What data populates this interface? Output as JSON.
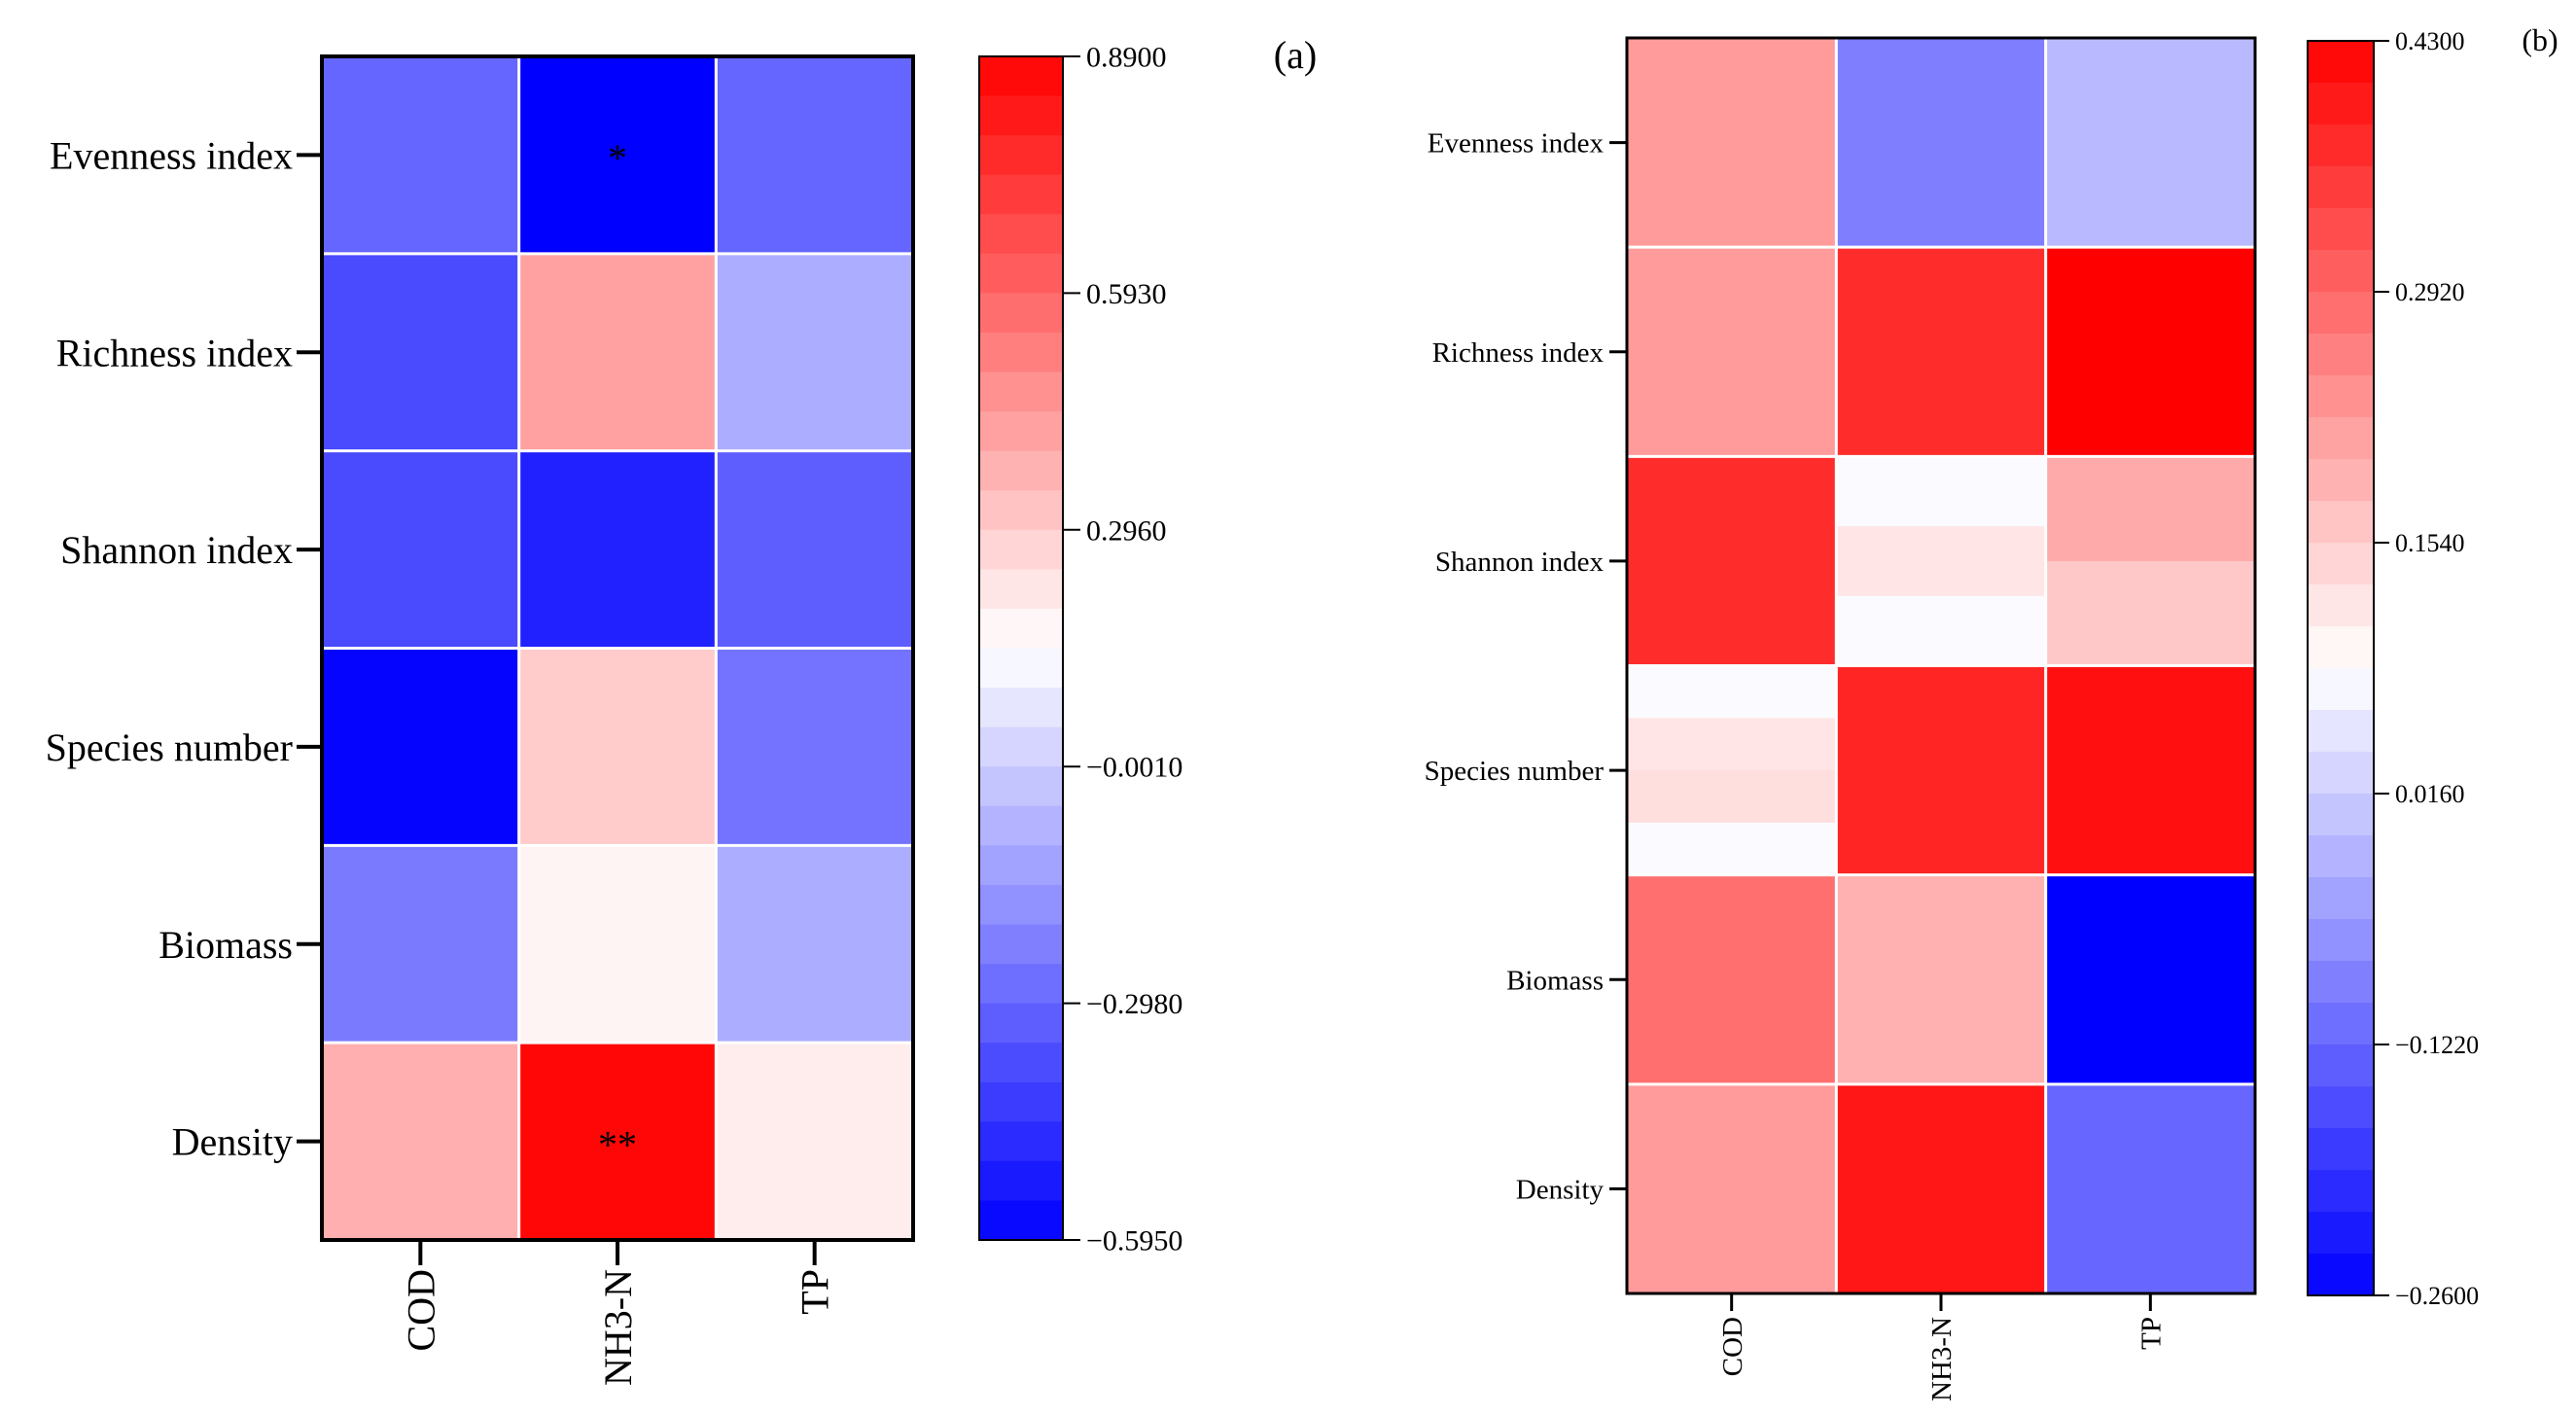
{
  "figure_panels": [
    "(a)",
    "(b)"
  ],
  "chart_data": [
    {
      "type": "heatmap",
      "panel_label": "(a)",
      "title": "",
      "xlabel": "",
      "ylabel": "",
      "rows": [
        "Evenness index",
        "Richness index",
        "Shannon index",
        "Species number",
        "Biomass",
        "Density"
      ],
      "cols": [
        "COD",
        "NH3-N",
        "TP"
      ],
      "values": [
        [
          -0.3,
          -0.595,
          -0.3
        ],
        [
          -0.38,
          0.42,
          -0.09
        ],
        [
          -0.38,
          -0.5,
          -0.32
        ],
        [
          -0.58,
          0.3,
          -0.26
        ],
        [
          -0.24,
          0.18,
          -0.09
        ],
        [
          0.38,
          0.87,
          0.2
        ]
      ],
      "annotations": [
        [
          "",
          "*",
          ""
        ],
        [
          "",
          "",
          ""
        ],
        [
          "",
          "",
          ""
        ],
        [
          "",
          "",
          ""
        ],
        [
          "",
          "",
          ""
        ],
        [
          "",
          "**",
          ""
        ]
      ],
      "colorbar": {
        "min": -0.595,
        "max": 0.89,
        "ticks": [
          0.89,
          0.593,
          0.296,
          -0.001,
          -0.298,
          -0.595
        ],
        "tick_labels": [
          "0.8900",
          "0.5930",
          "0.2960",
          "−0.0010",
          "−0.2980",
          "−0.5950"
        ],
        "colors": {
          "low": "#0000ff",
          "mid": "#ffffff",
          "high": "#ff0000"
        },
        "steps": 30
      }
    },
    {
      "type": "heatmap",
      "panel_label": "(b)",
      "title": "",
      "xlabel": "",
      "ylabel": "",
      "rows": [
        "Evenness index",
        "Richness index",
        "Shannon index",
        "Species number",
        "Biomass",
        "Density"
      ],
      "cols": [
        "COD",
        "NH3-N",
        "TP"
      ],
      "values": [
        [
          0.22,
          -0.09,
          -0.01
        ],
        [
          0.22,
          0.37,
          0.43
        ],
        [
          0.37,
          [
            0.08,
            0.12,
            0.08
          ],
          [
            0.2,
            0.2,
            0.16,
            0.16
          ]
        ],
        [
          [
            0.08,
            0.12,
            0.13,
            0.08
          ],
          0.38,
          0.41
        ],
        [
          0.28,
          0.19,
          -0.26
        ],
        [
          0.22,
          0.4,
          -0.12
        ]
      ],
      "annotations": [],
      "colorbar": {
        "min": -0.26,
        "max": 0.43,
        "ticks": [
          0.43,
          0.292,
          0.154,
          0.016,
          -0.122,
          -0.26
        ],
        "tick_labels": [
          "0.4300",
          "0.2920",
          "0.1540",
          "0.0160",
          "−0.1220",
          "−0.2600"
        ],
        "colors": {
          "low": "#0000ff",
          "mid": "#ffffff",
          "high": "#ff0000"
        },
        "mid_value": 0.085,
        "steps": 30
      }
    }
  ]
}
